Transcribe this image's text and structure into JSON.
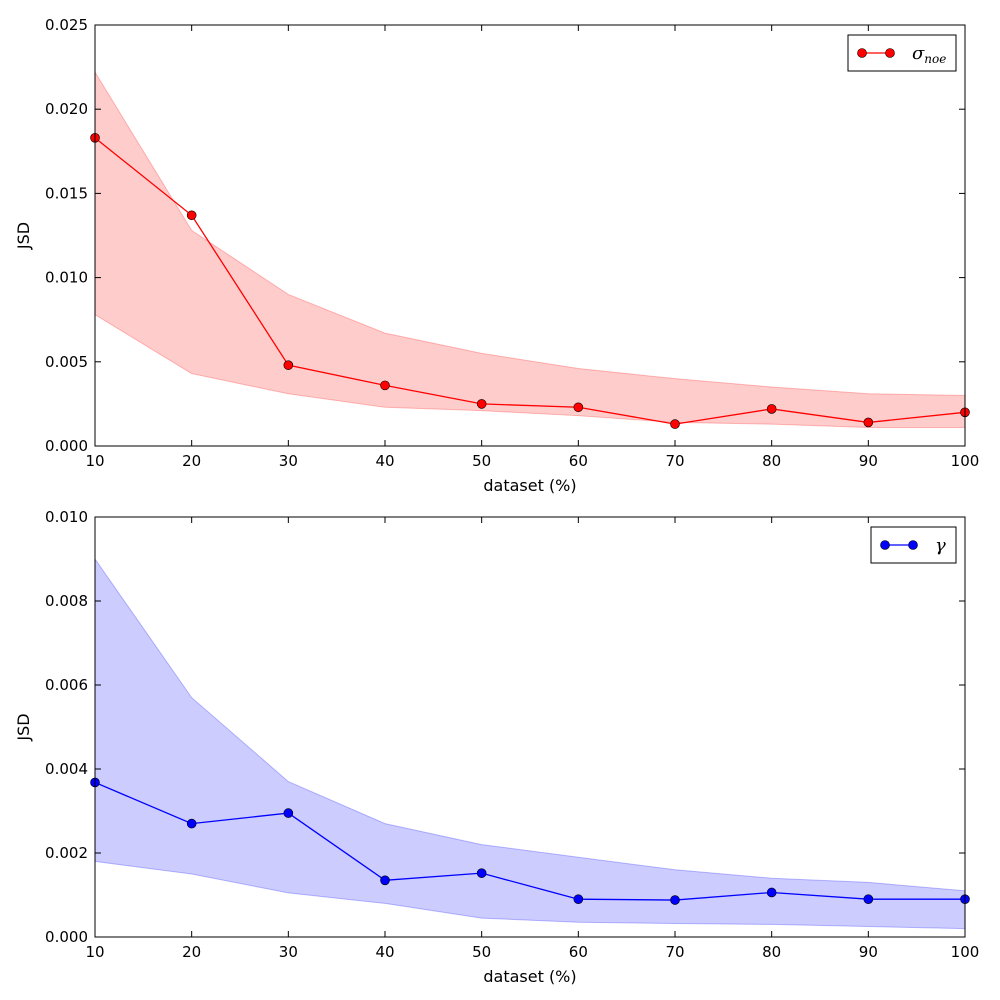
{
  "chart_data": [
    {
      "type": "line",
      "title": "",
      "xlabel": "dataset (%)",
      "ylabel": "JSD",
      "xlim": [
        10,
        100
      ],
      "ylim": [
        0,
        0.025
      ],
      "xticks": [
        10,
        20,
        30,
        40,
        50,
        60,
        70,
        80,
        90,
        100
      ],
      "xtick_labels": [
        "10",
        "20",
        "30",
        "40",
        "50",
        "60",
        "70",
        "80",
        "90",
        "100"
      ],
      "yticks": [
        0,
        0.005,
        0.01,
        0.015,
        0.02,
        0.025
      ],
      "ytick_labels": [
        "0.000",
        "0.005",
        "0.010",
        "0.015",
        "0.020",
        "0.025"
      ],
      "grid": false,
      "legend_position": "top-right",
      "series": [
        {
          "legend_main": "σ",
          "legend_sub": "noe",
          "color": "#ff0000",
          "band_color": "#ff0000",
          "x": [
            10,
            20,
            30,
            40,
            50,
            60,
            70,
            80,
            90,
            100
          ],
          "values": [
            0.0183,
            0.0137,
            0.0048,
            0.0036,
            0.0025,
            0.0023,
            0.0013,
            0.0022,
            0.0014,
            0.002
          ],
          "band_upper": [
            0.0222,
            0.0128,
            0.009,
            0.0067,
            0.0055,
            0.0046,
            0.004,
            0.0035,
            0.0031,
            0.003
          ],
          "band_lower": [
            0.0078,
            0.0043,
            0.0031,
            0.0023,
            0.0021,
            0.0018,
            0.0014,
            0.0013,
            0.0011,
            0.0011
          ]
        }
      ]
    },
    {
      "type": "line",
      "title": "",
      "xlabel": "dataset (%)",
      "ylabel": "JSD",
      "xlim": [
        10,
        100
      ],
      "ylim": [
        0,
        0.01
      ],
      "xticks": [
        10,
        20,
        30,
        40,
        50,
        60,
        70,
        80,
        90,
        100
      ],
      "xtick_labels": [
        "10",
        "20",
        "30",
        "40",
        "50",
        "60",
        "70",
        "80",
        "90",
        "100"
      ],
      "yticks": [
        0,
        0.002,
        0.004,
        0.006,
        0.008,
        0.01
      ],
      "ytick_labels": [
        "0.000",
        "0.002",
        "0.004",
        "0.006",
        "0.008",
        "0.010"
      ],
      "grid": false,
      "legend_position": "top-right",
      "series": [
        {
          "legend_main": "γ",
          "legend_sub": "",
          "color": "#0000ff",
          "band_color": "#0000ff",
          "x": [
            10,
            20,
            30,
            40,
            50,
            60,
            70,
            80,
            90,
            100
          ],
          "values": [
            0.00368,
            0.0027,
            0.00295,
            0.00135,
            0.00152,
            0.0009,
            0.00088,
            0.00106,
            0.0009,
            0.0009
          ],
          "band_upper": [
            0.009,
            0.0057,
            0.0037,
            0.0027,
            0.0022,
            0.0019,
            0.0016,
            0.0014,
            0.0013,
            0.0011
          ],
          "band_lower": [
            0.0018,
            0.0015,
            0.00105,
            0.0008,
            0.00045,
            0.00035,
            0.00032,
            0.0003,
            0.00025,
            0.0002
          ]
        }
      ]
    }
  ]
}
